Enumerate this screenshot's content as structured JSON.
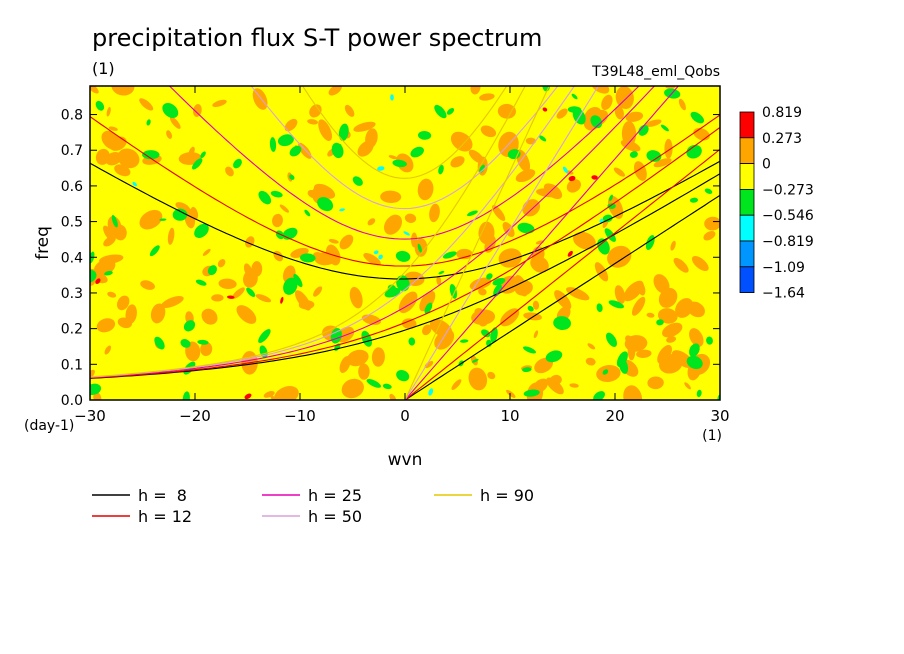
{
  "chart_data": {
    "type": "heatmap",
    "title": "precipitation flux S-T power spectrum",
    "units_label": "(1)",
    "run_label": "T39L48_eml_Qobs",
    "xlabel": "wvn",
    "ylabel": "freq",
    "x_unit_label": "(1)",
    "y_unit_label": "(day-1)",
    "xlim": [
      -30,
      30
    ],
    "ylim": [
      0,
      0.88
    ],
    "x_ticks": [
      -30,
      -20,
      -10,
      0,
      10,
      20,
      30
    ],
    "x_tick_labels": [
      "−30",
      "−20",
      "−10",
      "0",
      "10",
      "20",
      "30"
    ],
    "y_ticks": [
      0.0,
      0.1,
      0.2,
      0.3,
      0.4,
      0.5,
      0.6,
      0.7,
      0.8
    ],
    "y_tick_labels": [
      "0.0",
      "0.1",
      "0.2",
      "0.3",
      "0.4",
      "0.5",
      "0.6",
      "0.7",
      "0.8"
    ],
    "colorbar": {
      "labels": [
        "0.819",
        "0.273",
        "0",
        "−0.273",
        "−0.546",
        "−0.819",
        "−1.09",
        "−1.64"
      ],
      "colors": [
        "#ff0000",
        "#ffa500",
        "#ffff00",
        "#00e61e",
        "#00ffff",
        "#0096ff",
        "#0050ff"
      ]
    },
    "dispersion_curves": [
      {
        "label": "h =  8",
        "h": 8,
        "color": "#000000"
      },
      {
        "label": "h = 12",
        "h": 12,
        "color": "#e60000"
      },
      {
        "label": "h = 25",
        "h": 25,
        "color": "#e600b4"
      },
      {
        "label": "h = 50",
        "h": 50,
        "color": "#dca0dc"
      },
      {
        "label": "h = 90",
        "h": 90,
        "color": "#e6c800"
      }
    ]
  }
}
